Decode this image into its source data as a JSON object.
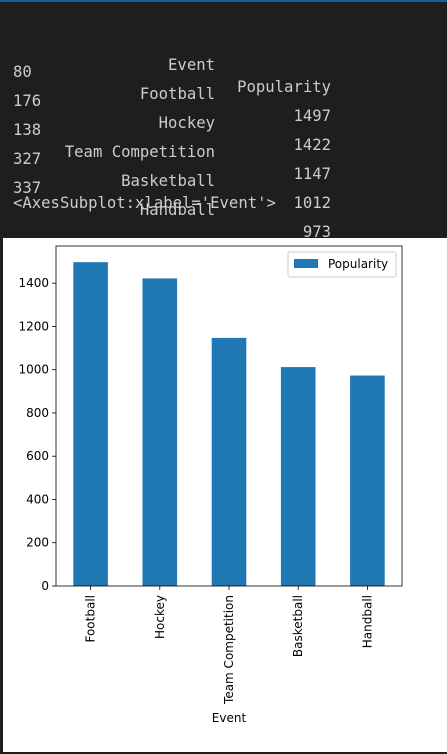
{
  "output": {
    "table": {
      "columns": [
        "",
        "Event",
        "Popularity"
      ],
      "rows": [
        {
          "index": "80",
          "event": "Football",
          "popularity": "1497"
        },
        {
          "index": "176",
          "event": "Hockey",
          "popularity": "1422"
        },
        {
          "index": "138",
          "event": "Team Competition",
          "popularity": "1147"
        },
        {
          "index": "327",
          "event": "Basketball",
          "popularity": "1012"
        },
        {
          "index": "337",
          "event": "Handball",
          "popularity": "973"
        }
      ]
    },
    "repr": "<AxesSubplot:xlabel='Event'>"
  },
  "chart_data": {
    "type": "bar",
    "categories": [
      "Football",
      "Hockey",
      "Team Competition",
      "Basketball",
      "Handball"
    ],
    "series": [
      {
        "name": "Popularity",
        "values": [
          1497,
          1422,
          1147,
          1012,
          973
        ],
        "color": "#1f77b4"
      }
    ],
    "xlabel": "Event",
    "ylabel": "",
    "ylim": [
      0,
      1571.85
    ],
    "yticks": [
      0,
      200,
      400,
      600,
      800,
      1000,
      1200,
      1400
    ],
    "legend": "upper right",
    "grid": false
  },
  "theme": {
    "background": "#1e1e1e",
    "text": "#cccccc",
    "bar": "#1f77b4"
  }
}
